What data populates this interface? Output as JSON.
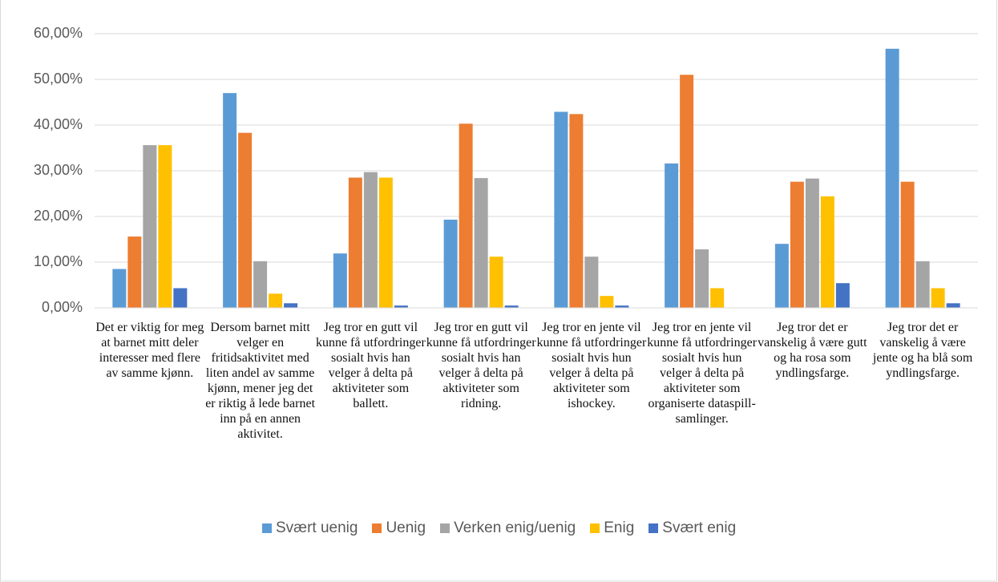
{
  "chart_data": {
    "type": "bar",
    "categories": [
      "Det er viktig for meg at barnet mitt deler interesser med flere av samme kjønn.",
      "Dersom barnet mitt velger en fritidsaktivitet med liten andel av samme kjønn, mener jeg det er riktig å lede barnet inn på en annen aktivitet.",
      "Jeg tror en gutt vil kunne få utfordringer sosialt hvis han velger å delta på aktiviteter som ballett.",
      "Jeg tror en gutt vil kunne få utfordringer sosialt hvis han velger å delta på aktiviteter som ridning.",
      "Jeg tror en jente vil kunne få utfordringer sosialt hvis hun velger å delta på aktiviteter som ishockey.",
      "Jeg tror en jente vil kunne få utfordringer sosialt hvis hun velger å delta på aktiviteter som organiserte dataspill-samlinger.",
      "Jeg tror det er vanskelig å være gutt og ha rosa som yndlingsfarge.",
      "Jeg tror det er vanskelig å være jente og ha blå som yndlingsfarge."
    ],
    "series": [
      {
        "name": "Svært uenig",
        "color": "#5b9bd5",
        "values": [
          8.5,
          47.0,
          11.9,
          19.3,
          42.9,
          31.6,
          14.0,
          56.7
        ]
      },
      {
        "name": "Uenig",
        "color": "#ed7d31",
        "values": [
          15.6,
          38.3,
          28.5,
          40.3,
          42.4,
          51.0,
          27.6,
          27.6
        ]
      },
      {
        "name": "Verken enig/uenig",
        "color": "#a5a5a5",
        "values": [
          35.6,
          10.2,
          29.7,
          28.4,
          11.2,
          12.8,
          28.3,
          10.2
        ]
      },
      {
        "name": "Enig",
        "color": "#ffc000",
        "values": [
          35.6,
          3.1,
          28.5,
          11.2,
          2.6,
          4.3,
          24.4,
          4.3
        ]
      },
      {
        "name": "Svært enig",
        "color": "#4472c4",
        "values": [
          4.3,
          1.0,
          0.5,
          0.5,
          0.5,
          0,
          5.4,
          1.0
        ]
      }
    ],
    "ylim": [
      0,
      60
    ],
    "yticks": [
      {
        "value": 0,
        "label": "0,00%"
      },
      {
        "value": 10,
        "label": "10,00%"
      },
      {
        "value": 20,
        "label": "20,00%"
      },
      {
        "value": 30,
        "label": "30,00%"
      },
      {
        "value": 40,
        "label": "40,00%"
      },
      {
        "value": 50,
        "label": "50,00%"
      },
      {
        "value": 60,
        "label": "60,00%"
      }
    ],
    "grid": true,
    "legend": "bottom"
  }
}
